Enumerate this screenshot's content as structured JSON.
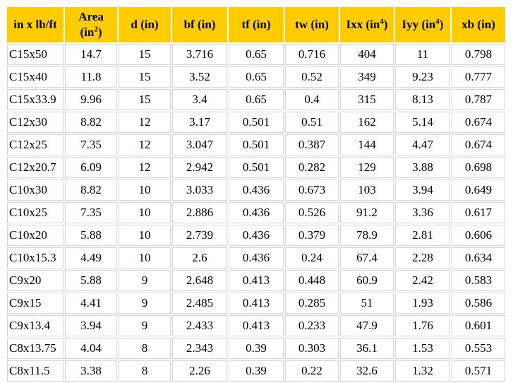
{
  "headers": [
    {
      "text": "in x lb/ft",
      "sup": ""
    },
    {
      "text": "Area",
      "line2": "(in",
      "sup": "2",
      "after": ")"
    },
    {
      "text": "d (in)",
      "sup": ""
    },
    {
      "text": "bf (in)",
      "sup": ""
    },
    {
      "text": "tf (in)",
      "sup": ""
    },
    {
      "text": "tw (in)",
      "sup": ""
    },
    {
      "text": "Ixx (in",
      "sup": "4",
      "after": ")"
    },
    {
      "text": "Iyy (in",
      "sup": "4",
      "after": ")"
    },
    {
      "text": "xb (in)",
      "sup": ""
    }
  ],
  "rows": [
    [
      "C15x50",
      "14.7",
      "15",
      "3.716",
      "0.65",
      "0.716",
      "404",
      "11",
      "0.798"
    ],
    [
      "C15x40",
      "11.8",
      "15",
      "3.52",
      "0.65",
      "0.52",
      "349",
      "9.23",
      "0.777"
    ],
    [
      "C15x33.9",
      "9.96",
      "15",
      "3.4",
      "0.65",
      "0.4",
      "315",
      "8.13",
      "0.787"
    ],
    [
      "C12x30",
      "8.82",
      "12",
      "3.17",
      "0.501",
      "0.51",
      "162",
      "5.14",
      "0.674"
    ],
    [
      "C12x25",
      "7.35",
      "12",
      "3.047",
      "0.501",
      "0.387",
      "144",
      "4.47",
      "0.674"
    ],
    [
      "C12x20.7",
      "6.09",
      "12",
      "2.942",
      "0.501",
      "0.282",
      "129",
      "3.88",
      "0.698"
    ],
    [
      "C10x30",
      "8.82",
      "10",
      "3.033",
      "0.436",
      "0.673",
      "103",
      "3.94",
      "0.649"
    ],
    [
      "C10x25",
      "7.35",
      "10",
      "2.886",
      "0.436",
      "0.526",
      "91.2",
      "3.36",
      "0.617"
    ],
    [
      "C10x20",
      "5.88",
      "10",
      "2.739",
      "0.436",
      "0.379",
      "78.9",
      "2.81",
      "0.606"
    ],
    [
      "C10x15.3",
      "4.49",
      "10",
      "2.6",
      "0.436",
      "0.24",
      "67.4",
      "2.28",
      "0.634"
    ],
    [
      "C9x20",
      "5.88",
      "9",
      "2.648",
      "0.413",
      "0.448",
      "60.9",
      "2.42",
      "0.583"
    ],
    [
      "C9x15",
      "4.41",
      "9",
      "2.485",
      "0.413",
      "0.285",
      "51",
      "1.93",
      "0.586"
    ],
    [
      "C9x13.4",
      "3.94",
      "9",
      "2.433",
      "0.413",
      "0.233",
      "47.9",
      "1.76",
      "0.601"
    ],
    [
      "C8x13.75",
      "4.04",
      "8",
      "2.343",
      "0.39",
      "0.303",
      "36.1",
      "1.53",
      "0.553"
    ],
    [
      "C8x11.5",
      "3.38",
      "8",
      "2.26",
      "0.39",
      "0.22",
      "32.6",
      "1.32",
      "0.571"
    ]
  ],
  "colors": {
    "header_bg": "#ffcc00",
    "cell_border": "#d4d4d4"
  }
}
